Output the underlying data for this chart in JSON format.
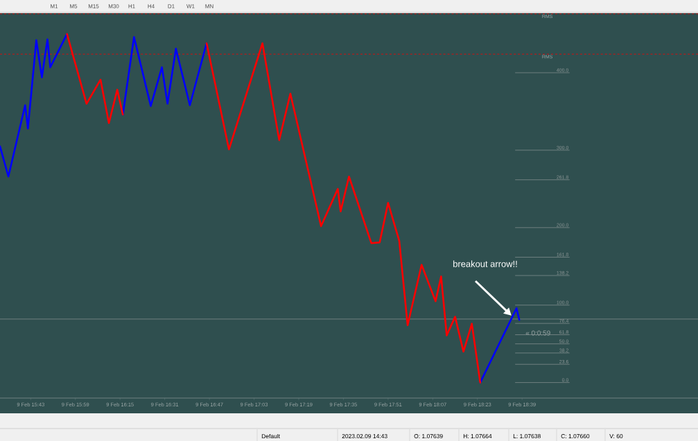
{
  "chart_data": {
    "type": "line",
    "xlim": [
      "2023-02-09T15:32",
      "2023-02-09T19:42"
    ],
    "ylim": [
      -20,
      476
    ],
    "xticks": [
      {
        "value": "2023-02-09T15:43",
        "label": "9 Feb 15:43"
      },
      {
        "value": "2023-02-09T15:59",
        "label": "9 Feb 15:59"
      },
      {
        "value": "2023-02-09T16:15",
        "label": "9 Feb 16:15"
      },
      {
        "value": "2023-02-09T16:31",
        "label": "9 Feb 16:31"
      },
      {
        "value": "2023-02-09T16:47",
        "label": "9 Feb 16:47"
      },
      {
        "value": "2023-02-09T17:03",
        "label": "9 Feb 17:03"
      },
      {
        "value": "2023-02-09T17:19",
        "label": "9 Feb 17:19"
      },
      {
        "value": "2023-02-09T17:35",
        "label": "9 Feb 17:35"
      },
      {
        "value": "2023-02-09T17:51",
        "label": "9 Feb 17:51"
      },
      {
        "value": "2023-02-09T18:07",
        "label": "9 Feb 18:07"
      },
      {
        "value": "2023-02-09T18:23",
        "label": "9 Feb 18:23"
      },
      {
        "value": "2023-02-09T18:39",
        "label": "9 Feb 18:39"
      }
    ],
    "tick_labels": "x",
    "marker": "none",
    "line_style": "solid",
    "series": [
      {
        "color": "#0000ff",
        "x": [
          "2023-02-09T15:32",
          "2023-02-09T15:35",
          "2023-02-09T15:41",
          "2023-02-09T15:42",
          "2023-02-09T15:45",
          "2023-02-09T15:47",
          "2023-02-09T15:49",
          "2023-02-09T15:50",
          "2023-02-09T15:56",
          "2023-02-09T16:06",
          "2023-02-09T16:16",
          "2023-02-09T16:20",
          "2023-02-09T16:26",
          "2023-02-09T16:30",
          "2023-02-09T16:32",
          "2023-02-09T16:35",
          "2023-02-09T16:40",
          "2023-02-09T16:46",
          "2023-02-09T17:30",
          "2023-02-09T18:24",
          "2023-02-09T18:37",
          "2023-02-09T18:38"
        ],
        "values": [
          305,
          266,
          358,
          328,
          442,
          394,
          443,
          407,
          450,
          null,
          346,
          446,
          357,
          407,
          360,
          431,
          358,
          438,
          null,
          0,
          96,
          81
        ]
      },
      {
        "color": "#ff0000",
        "x": [
          "2023-02-09T15:56",
          "2023-02-09T16:03",
          "2023-02-09T16:08",
          "2023-02-09T16:11",
          "2023-02-09T16:14",
          "2023-02-09T16:16",
          "2023-02-09T16:30",
          "2023-02-09T16:46",
          "2023-02-09T16:54",
          "2023-02-09T17:06",
          "2023-02-09T17:12",
          "2023-02-09T17:16",
          "2023-02-09T17:27",
          "2023-02-09T17:33",
          "2023-02-09T17:34",
          "2023-02-09T17:37",
          "2023-02-09T17:45",
          "2023-02-09T17:48",
          "2023-02-09T17:51",
          "2023-02-09T17:55",
          "2023-02-09T17:58",
          "2023-02-09T18:03",
          "2023-02-09T18:08",
          "2023-02-09T18:10",
          "2023-02-09T18:12",
          "2023-02-09T18:15",
          "2023-02-09T18:18",
          "2023-02-09T18:21",
          "2023-02-09T18:24"
        ],
        "values": [
          450,
          360,
          391,
          335,
          378,
          346,
          null,
          438,
          301,
          438,
          313,
          373,
          202,
          250,
          221,
          266,
          180,
          181,
          232,
          183,
          74,
          152,
          105,
          137,
          61,
          85,
          40,
          76,
          0
        ]
      }
    ],
    "ref_lines": [
      {
        "axis": "y",
        "value": 0,
        "label": "0.0",
        "color": "#8c9696"
      },
      {
        "axis": "y",
        "value": 23.6,
        "label": "23.6",
        "color": "#8c9696"
      },
      {
        "axis": "y",
        "value": 38.2,
        "label": "38.2",
        "color": "#8c9696"
      },
      {
        "axis": "y",
        "value": 50,
        "label": "50.0",
        "color": "#8c9696"
      },
      {
        "axis": "y",
        "value": 61.8,
        "label": "61.8",
        "color": "#8c9696"
      },
      {
        "axis": "y",
        "value": 76.4,
        "label": "76.4",
        "color": "#8c9696"
      },
      {
        "axis": "y",
        "value": 100,
        "label": "100.0",
        "color": "#8c9696"
      },
      {
        "axis": "y",
        "value": 138.2,
        "label": "138.2",
        "color": "#8c9696"
      },
      {
        "axis": "y",
        "value": 161.8,
        "label": "161.8",
        "color": "#8c9696"
      },
      {
        "axis": "y",
        "value": 200,
        "label": "200.0",
        "color": "#8c9696"
      },
      {
        "axis": "y",
        "value": 261.8,
        "label": "261.8",
        "color": "#8c9696"
      },
      {
        "axis": "y",
        "value": 300,
        "label": "300.0",
        "color": "#8c9696"
      },
      {
        "axis": "y",
        "value": 400,
        "label": "400.0",
        "color": "#8c9696"
      },
      {
        "axis": "y",
        "value": 82,
        "color": "#8c9696"
      },
      {
        "axis": "y",
        "value": 476,
        "label": "RMS",
        "color": "#ff0000",
        "line_style": "dashed"
      },
      {
        "axis": "y",
        "value": 424,
        "label": "RMS",
        "color": "#ff0000",
        "line_style": "dashed"
      }
    ],
    "annotations": [
      "breakout arrow!!",
      "« 0:0:59",
      "M1",
      "M5",
      "M15",
      "M30",
      "H1",
      "H4",
      "D1",
      "W1",
      "MN",
      "Default",
      "2023.02.09 14:43",
      "O: 1.07639",
      "H: 1.07664",
      "L: 1.07638",
      "C: 1.07660",
      "V: 60"
    ]
  }
}
